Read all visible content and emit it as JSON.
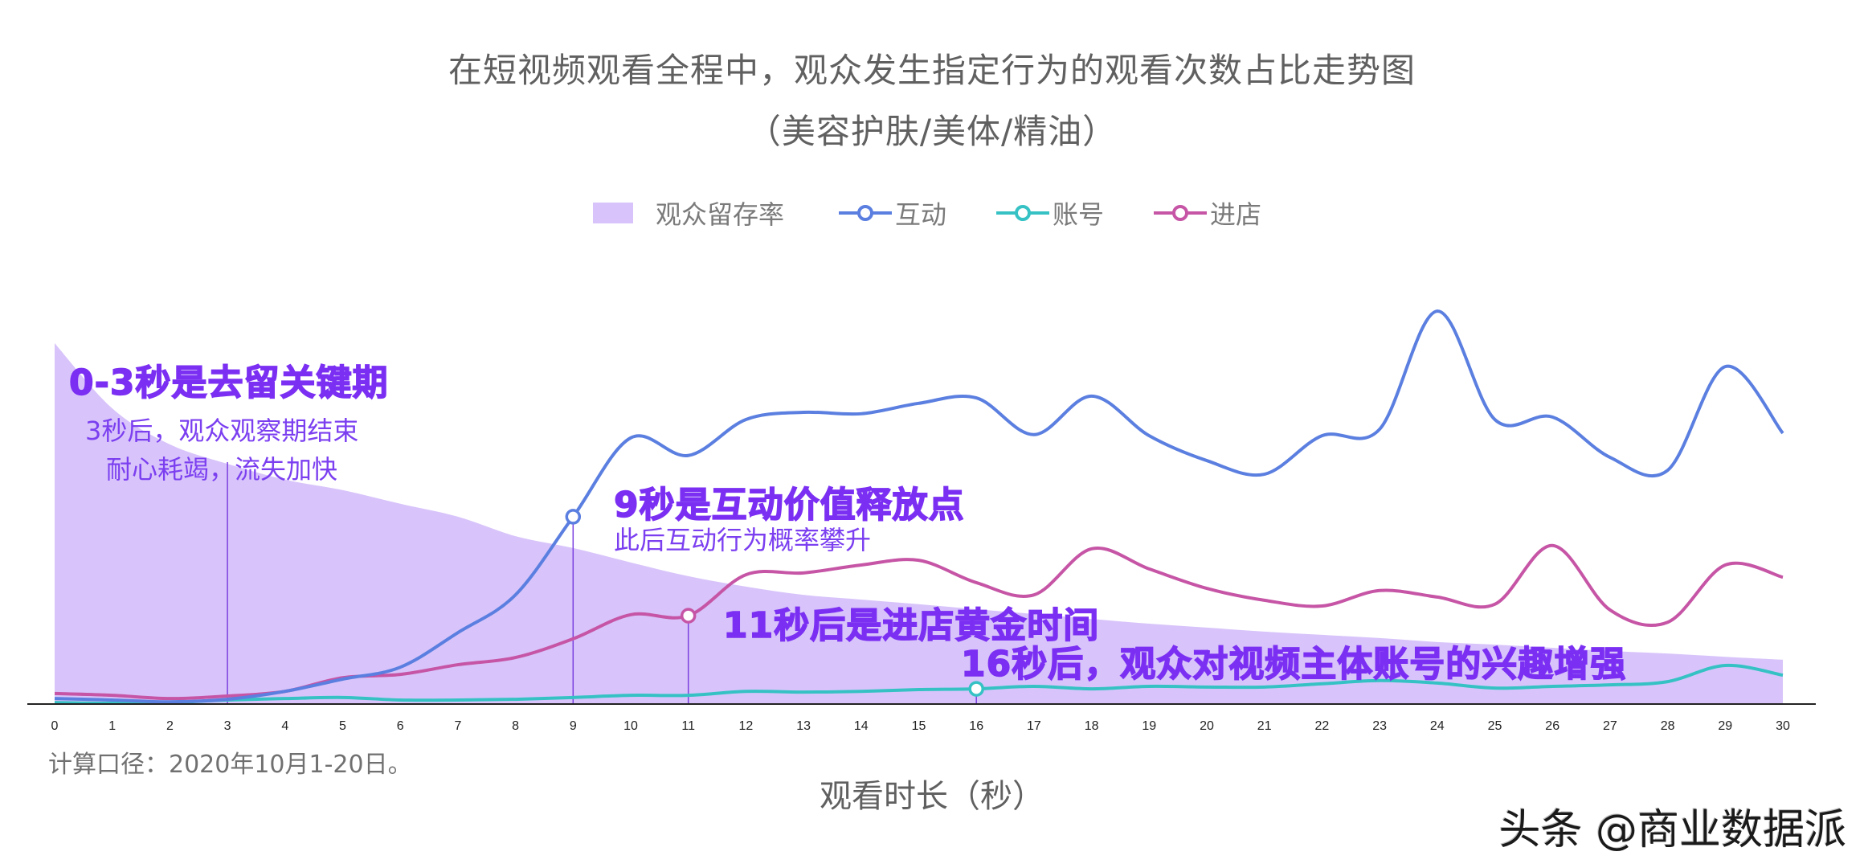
{
  "header": {
    "title": "在短视频观看全程中，观众发生指定行为的观看次数占比走势图",
    "subtitle": "（美容护肤/美体/精油）"
  },
  "legend": {
    "items": [
      {
        "label": "观众留存率",
        "type": "area",
        "color": "#d8c4fa"
      },
      {
        "label": "互动",
        "type": "line",
        "color": "#5b7fe0"
      },
      {
        "label": "账号",
        "type": "line",
        "color": "#36c2c4"
      },
      {
        "label": "进店",
        "type": "line",
        "color": "#c655a6"
      }
    ]
  },
  "annotations": {
    "retention_title": "0-3秒是去留关键期",
    "retention_line1": "3秒后，观众观察期结束",
    "retention_line2": "耐心耗竭，流失加快",
    "interaction_title": "9秒是互动价值释放点",
    "interaction_sub": "此后互动行为概率攀升",
    "store_title": "11秒后是进店黄金时间",
    "account_title": "16秒后，观众对视频主体账号的兴趣增强"
  },
  "footnote": "计算口径：2020年10月1-20日。",
  "xaxis_label": "观看时长（秒）",
  "watermark": "头条 @商业数据派",
  "colors": {
    "area": "#d8c4fa",
    "interaction": "#5b7fe0",
    "account": "#36c2c4",
    "store": "#c655a6",
    "reference_line": "#7b3fe0",
    "annotation": "#7b2ff2",
    "axis": "#222222"
  },
  "chart_data": {
    "type": "line",
    "title": "在短视频观看全程中，观众发生指定行为的观看次数占比走势图（美容护肤/美体/精油）",
    "xlabel": "观看时长（秒）",
    "ylabel": "",
    "x": [
      0,
      1,
      2,
      3,
      4,
      5,
      6,
      7,
      8,
      9,
      10,
      11,
      12,
      13,
      14,
      15,
      16,
      17,
      18,
      19,
      20,
      21,
      22,
      23,
      24,
      25,
      26,
      27,
      28,
      29,
      30
    ],
    "grid": false,
    "legend_position": "top",
    "y_axis_visible": false,
    "ylim": [
      0,
      110
    ],
    "note": "Y values are relative (no y-axis shown); estimated from pixel positions, retention normalized to 100 at 0s.",
    "series": [
      {
        "name": "观众留存率",
        "type": "area",
        "values": [
          100,
          81.9,
          71.9,
          66.5,
          62.1,
          59.2,
          55.4,
          51.8,
          46.4,
          43.1,
          39.1,
          35.3,
          32.4,
          30.1,
          28.8,
          27.5,
          26.1,
          24.8,
          23.4,
          22.1,
          21.0,
          19.9,
          19.0,
          18.1,
          17.0,
          16.3,
          15.4,
          14.5,
          13.8,
          12.9,
          12.1
        ]
      },
      {
        "name": "互动",
        "type": "line",
        "values": [
          1.3,
          0.9,
          0.4,
          1.1,
          3.3,
          6.7,
          10.0,
          19.6,
          30.1,
          51.8,
          73.7,
          68.8,
          78.8,
          80.8,
          80.4,
          83.3,
          84.8,
          74.6,
          85.3,
          74.3,
          67.4,
          63.6,
          74.3,
          76.1,
          108.9,
          78.8,
          79.5,
          68.3,
          64.7,
          93.5,
          75.0
        ]
      },
      {
        "name": "账号",
        "type": "line",
        "values": [
          0.2,
          0,
          0.2,
          0.9,
          1.3,
          1.6,
          0.9,
          0.9,
          1.1,
          1.6,
          2.2,
          2.2,
          3.3,
          3.1,
          3.3,
          3.8,
          4.0,
          4.7,
          4.0,
          4.7,
          4.5,
          4.5,
          5.4,
          6.3,
          5.6,
          4.2,
          4.7,
          5.1,
          6.0,
          10.5,
          7.8
        ]
      },
      {
        "name": "进店",
        "type": "line",
        "values": [
          2.7,
          2.2,
          1.3,
          2.0,
          3.3,
          7.1,
          8.0,
          10.7,
          12.7,
          17.9,
          24.6,
          24.3,
          35.7,
          36.2,
          38.4,
          39.7,
          33.5,
          30.1,
          42.9,
          37.3,
          31.9,
          28.6,
          27.0,
          31.3,
          29.5,
          27.5,
          43.8,
          25.9,
          22.5,
          38.4,
          35.0
        ]
      }
    ],
    "highlight_markers": [
      {
        "series": "互动",
        "x": 9
      },
      {
        "series": "进店",
        "x": 11
      },
      {
        "series": "账号",
        "x": 16
      }
    ],
    "reference_lines_x": [
      3,
      9,
      11,
      16
    ],
    "annotations": [
      {
        "x": 0,
        "text": "0-3秒是去留关键期"
      },
      {
        "x": 3,
        "text": "3秒后，观众观察期结束 耐心耗竭，流失加快"
      },
      {
        "x": 9,
        "text": "9秒是互动价值释放点 / 此后互动行为概率攀升"
      },
      {
        "x": 11,
        "text": "11秒后是进店黄金时间"
      },
      {
        "x": 16,
        "text": "16秒后，观众对视频主体账号的兴趣增强"
      }
    ]
  }
}
